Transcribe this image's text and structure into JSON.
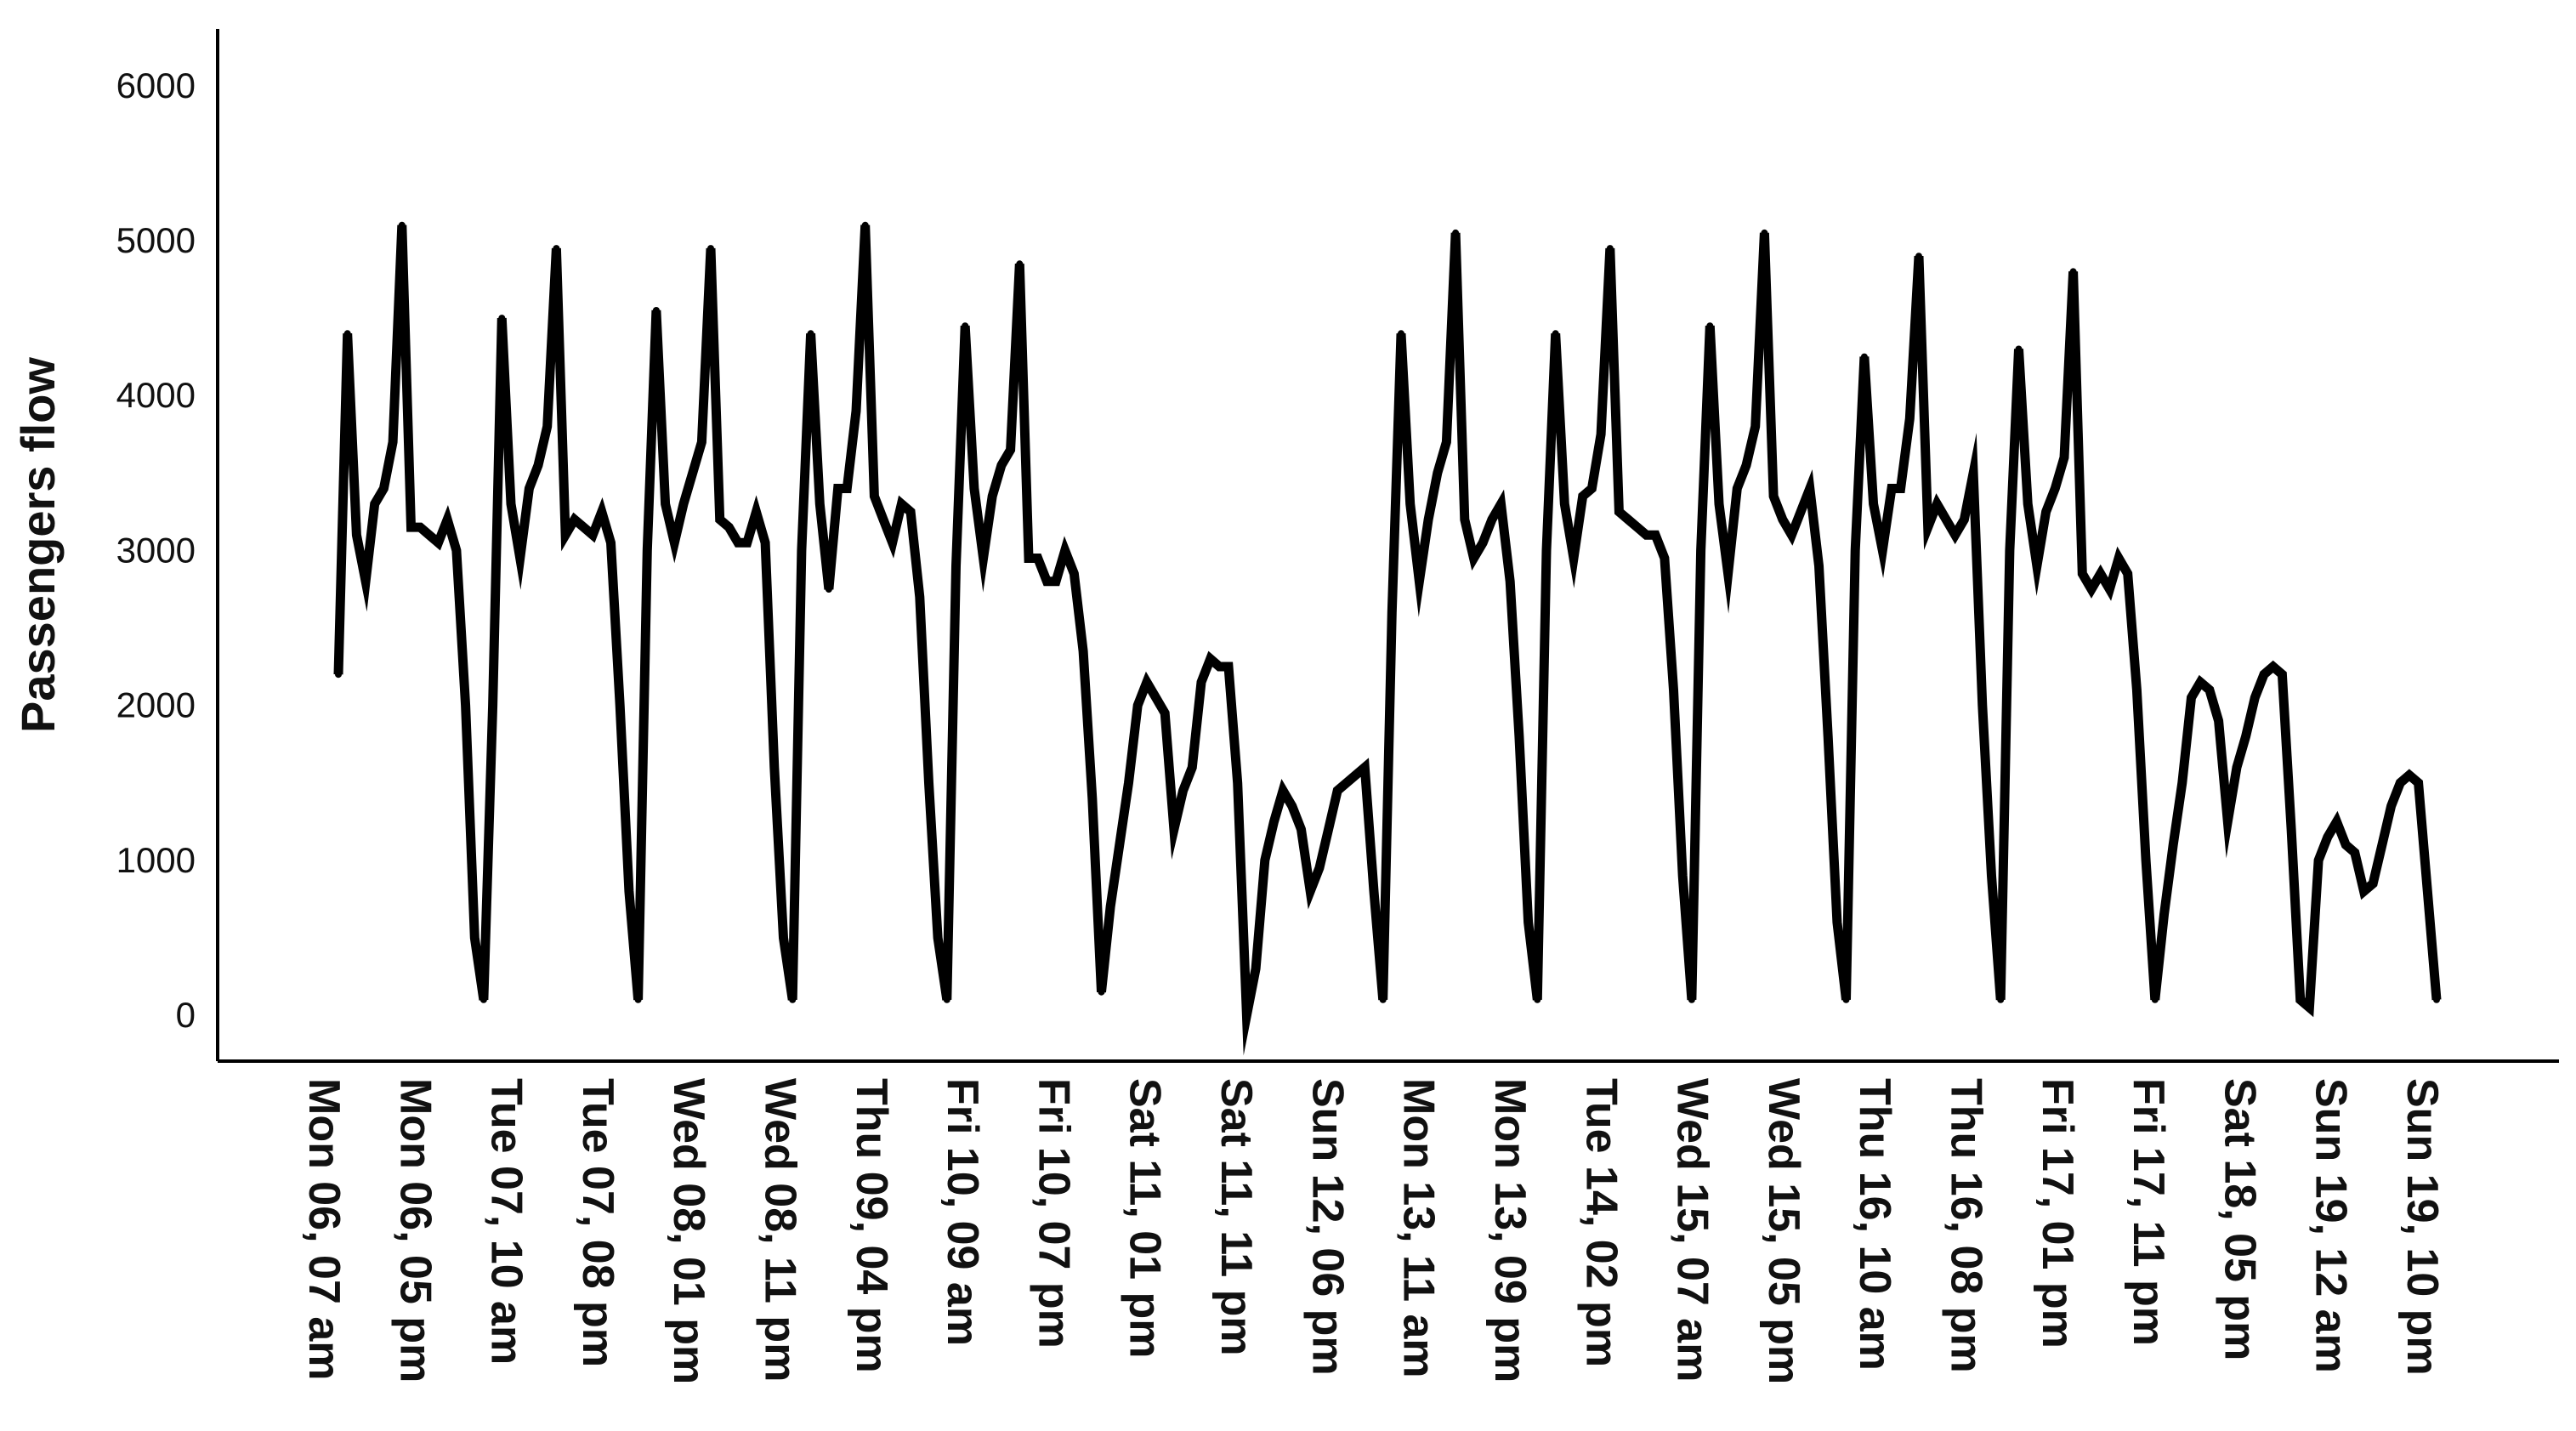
{
  "chart_data": {
    "type": "line",
    "title": "",
    "xlabel": "",
    "ylabel": "Passengers flow",
    "ylim": [
      -300,
      6400
    ],
    "yticks": [
      0,
      1000,
      2000,
      3000,
      4000,
      5000,
      6000
    ],
    "ytick_labels": [
      "0",
      "1000",
      "2000",
      "3000",
      "4000",
      "5000",
      "6000"
    ],
    "xtick_labels": [
      "Mon 06, 07 am",
      "Mon 06, 05 pm",
      "Tue 07, 10 am",
      "Tue 07, 08 pm",
      "Wed 08, 01 pm",
      "Wed 08, 11 pm",
      "Thu 09, 04 pm",
      "Fri 10, 09 am",
      "Fri 10, 07 pm",
      "Sat 11, 01 pm",
      "Sat 11, 11 pm",
      "Sun 12, 06 pm",
      "Mon 13, 11 am",
      "Mon 13, 09 pm",
      "Tue 14, 02 pm",
      "Wed 15, 07 am",
      "Wed 15, 05 pm",
      "Thu 16, 10 am",
      "Thu 16, 08 pm",
      "Fri 17, 01 pm",
      "Fri 17, 11 pm",
      "Sat 18, 05 pm",
      "Sun 19, 12 am",
      "Sun 19, 10 pm"
    ],
    "grid": false,
    "legend": "none",
    "line_color": "#000000",
    "series": [
      {
        "values": [
          2200,
          4400,
          3100,
          2800,
          3300,
          3400,
          3700,
          5100,
          3150,
          3150,
          3100,
          3050,
          3200,
          3000,
          2000,
          500,
          100,
          2000,
          4500,
          3300,
          2950,
          3400,
          3550,
          3800,
          4950,
          3100,
          3200,
          3150,
          3100,
          3250,
          3050,
          2000,
          800,
          100,
          3000,
          4550,
          3300,
          3050,
          3300,
          3500,
          3700,
          4950,
          3200,
          3150,
          3050,
          3050,
          3250,
          3050,
          1600,
          500,
          100,
          3000,
          4400,
          3300,
          2750,
          3400,
          3400,
          3900,
          5100,
          3350,
          3200,
          3050,
          3300,
          3250,
          2700,
          1500,
          500,
          100,
          2900,
          4450,
          3400,
          2950,
          3350,
          3550,
          3650,
          4850,
          2950,
          2950,
          2800,
          2800,
          3000,
          2850,
          2350,
          1400,
          150,
          700,
          1100,
          1500,
          2000,
          2150,
          2050,
          1950,
          1200,
          1450,
          1600,
          2150,
          2300,
          2250,
          2250,
          1500,
          0,
          300,
          1000,
          1250,
          1450,
          1350,
          1200,
          800,
          950,
          1200,
          1450,
          1500,
          1550,
          1600,
          800,
          100,
          2600,
          4400,
          3300,
          2800,
          3200,
          3500,
          3700,
          5050,
          3200,
          2950,
          3050,
          3200,
          3300,
          2800,
          1800,
          600,
          100,
          3000,
          4400,
          3300,
          2950,
          3350,
          3400,
          3750,
          4950,
          3250,
          3200,
          3150,
          3100,
          3100,
          2950,
          2100,
          900,
          100,
          3000,
          4450,
          3300,
          2850,
          3400,
          3550,
          3800,
          5050,
          3350,
          3200,
          3100,
          3250,
          3400,
          2900,
          1800,
          600,
          100,
          3000,
          4250,
          3300,
          3000,
          3400,
          3400,
          3850,
          4900,
          3150,
          3300,
          3200,
          3100,
          3200,
          3500,
          2000,
          900,
          100,
          3000,
          4300,
          3300,
          2900,
          3250,
          3400,
          3600,
          4800,
          2850,
          2750,
          2850,
          2750,
          2950,
          2850,
          2100,
          1000,
          100,
          650,
          1100,
          1500,
          2050,
          2150,
          2100,
          1900,
          1250,
          1600,
          1800,
          2050,
          2200,
          2250,
          2200,
          1200,
          100,
          50,
          1000,
          1150,
          1250,
          1100,
          1050,
          800,
          850,
          1100,
          1350,
          1500,
          1550,
          1500,
          800,
          100
        ]
      }
    ]
  }
}
